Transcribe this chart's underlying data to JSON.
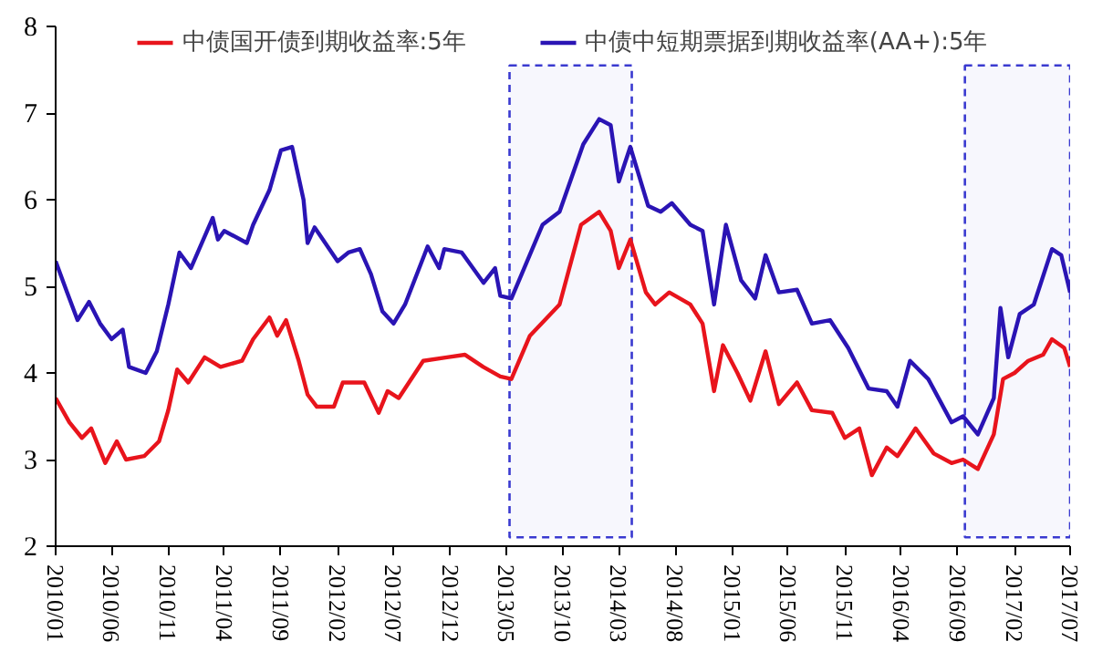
{
  "chart_data": {
    "type": "line",
    "legend": "top",
    "grid": false,
    "line_style": "solid",
    "marker": "none",
    "ylim": [
      2,
      8
    ],
    "yticks": [
      2,
      3,
      4,
      5,
      6,
      7,
      8
    ],
    "xlim": [
      "2010-01-01",
      "2017-07-01"
    ],
    "xticks": [
      {
        "value": "2010-01-01",
        "label": "2010/01"
      },
      {
        "value": "2010-06-01",
        "label": "2010/06"
      },
      {
        "value": "2010-11-01",
        "label": "2010/11"
      },
      {
        "value": "2011-04-01",
        "label": "2011/04"
      },
      {
        "value": "2011-09-01",
        "label": "2011/09"
      },
      {
        "value": "2012-02-01",
        "label": "2012/02"
      },
      {
        "value": "2012-07-01",
        "label": "2012/07"
      },
      {
        "value": "2012-12-01",
        "label": "2012/12"
      },
      {
        "value": "2013-05-01",
        "label": "2013/05"
      },
      {
        "value": "2013-10-01",
        "label": "2013/10"
      },
      {
        "value": "2014-03-01",
        "label": "2014/03"
      },
      {
        "value": "2014-08-01",
        "label": "2014/08"
      },
      {
        "value": "2015-01-01",
        "label": "2015/01"
      },
      {
        "value": "2015-06-01",
        "label": "2015/06"
      },
      {
        "value": "2015-11-01",
        "label": "2015/11"
      },
      {
        "value": "2016-04-01",
        "label": "2016/04"
      },
      {
        "value": "2016-09-01",
        "label": "2016/09"
      },
      {
        "value": "2017-02-01",
        "label": "2017/02"
      },
      {
        "value": "2017-07-01",
        "label": "2017/07"
      }
    ],
    "bands": [
      {
        "axis": "x",
        "from": "2013-05-10",
        "to": "2014-04-05",
        "color": "#3a3ad0"
      },
      {
        "axis": "x",
        "from": "2016-09-20",
        "to": "2017-07-01",
        "color": "#3a3ad0"
      }
    ],
    "series": [
      {
        "name": "中债国开债到期收益率:5年",
        "color": "#e8141c",
        "x": [
          "2010-01-01",
          "2010-02-07",
          "2010-03-13",
          "2010-04-07",
          "2010-05-15",
          "2010-06-15",
          "2010-07-10",
          "2010-08-28",
          "2010-10-07",
          "2010-11-01",
          "2010-11-25",
          "2010-12-25",
          "2011-02-07",
          "2011-03-22",
          "2011-05-19",
          "2011-06-18",
          "2011-08-01",
          "2011-08-22",
          "2011-09-15",
          "2011-10-19",
          "2011-11-12",
          "2011-12-07",
          "2012-01-22",
          "2012-02-15",
          "2012-04-13",
          "2012-05-22",
          "2012-06-15",
          "2012-07-15",
          "2012-09-19",
          "2012-11-22",
          "2013-01-10",
          "2013-02-28",
          "2013-04-15",
          "2013-05-15",
          "2013-07-04",
          "2013-09-22",
          "2013-11-19",
          "2014-01-07",
          "2014-02-07",
          "2014-03-01",
          "2014-04-01",
          "2014-05-13",
          "2014-06-07",
          "2014-07-15",
          "2014-09-10",
          "2014-10-13",
          "2014-11-13",
          "2014-12-07",
          "2015-01-15",
          "2015-02-19",
          "2015-04-01",
          "2015-05-07",
          "2015-06-25",
          "2015-08-04",
          "2015-09-28",
          "2015-11-01",
          "2015-12-10",
          "2016-01-13",
          "2016-02-22",
          "2016-03-22",
          "2016-05-10",
          "2016-06-28",
          "2016-08-15",
          "2016-09-15",
          "2016-10-25",
          "2016-12-07",
          "2017-01-01",
          "2017-02-01",
          "2017-03-10",
          "2017-04-19",
          "2017-05-13",
          "2017-06-15",
          "2017-07-01"
        ],
        "values": [
          3.71,
          3.43,
          3.25,
          3.36,
          2.96,
          3.21,
          3.0,
          3.04,
          3.21,
          3.57,
          4.04,
          3.89,
          4.18,
          4.07,
          4.14,
          4.39,
          4.64,
          4.43,
          4.61,
          4.14,
          3.75,
          3.61,
          3.61,
          3.89,
          3.89,
          3.54,
          3.79,
          3.71,
          4.14,
          4.18,
          4.21,
          4.07,
          3.96,
          3.93,
          4.43,
          4.79,
          5.71,
          5.86,
          5.64,
          5.21,
          5.54,
          4.93,
          4.79,
          4.93,
          4.79,
          4.57,
          3.79,
          4.32,
          4.0,
          3.68,
          4.25,
          3.64,
          3.89,
          3.57,
          3.54,
          3.25,
          3.36,
          2.82,
          3.14,
          3.04,
          3.36,
          3.07,
          2.96,
          3.0,
          2.89,
          3.29,
          3.93,
          4.0,
          4.14,
          4.21,
          4.39,
          4.29,
          4.07
        ]
      },
      {
        "name": "中债中短期票据到期收益率(AA+):5年",
        "color": "#2a14b4",
        "x": [
          "2010-01-01",
          "2010-02-01",
          "2010-03-01",
          "2010-04-01",
          "2010-05-01",
          "2010-06-01",
          "2010-07-01",
          "2010-07-18",
          "2010-09-01",
          "2010-10-01",
          "2010-11-01",
          "2010-12-01",
          "2011-01-01",
          "2011-03-01",
          "2011-03-15",
          "2011-04-01",
          "2011-06-01",
          "2011-06-18",
          "2011-08-01",
          "2011-09-01",
          "2011-10-01",
          "2011-11-01",
          "2011-11-12",
          "2011-12-01",
          "2012-02-01",
          "2012-03-01",
          "2012-04-01",
          "2012-05-01",
          "2012-06-01",
          "2012-07-01",
          "2012-08-01",
          "2012-10-01",
          "2012-11-01",
          "2012-11-15",
          "2013-01-01",
          "2013-03-01",
          "2013-04-01",
          "2013-04-15",
          "2013-05-15",
          "2013-08-07",
          "2013-09-22",
          "2013-11-25",
          "2014-01-07",
          "2014-02-07",
          "2014-03-01",
          "2014-04-01",
          "2014-05-19",
          "2014-06-22",
          "2014-07-22",
          "2014-09-10",
          "2014-10-13",
          "2014-11-13",
          "2014-12-15",
          "2015-01-25",
          "2015-03-04",
          "2015-04-01",
          "2015-05-07",
          "2015-06-25",
          "2015-08-04",
          "2015-09-22",
          "2015-11-10",
          "2016-01-04",
          "2016-02-22",
          "2016-03-22",
          "2016-04-25",
          "2016-06-13",
          "2016-08-15",
          "2016-09-15",
          "2016-10-25",
          "2016-12-07",
          "2016-12-25",
          "2017-01-15",
          "2017-02-15",
          "2017-03-25",
          "2017-05-13",
          "2017-06-07",
          "2017-07-01"
        ],
        "values": [
          5.29,
          4.93,
          4.61,
          4.82,
          4.57,
          4.39,
          4.5,
          4.07,
          4.0,
          4.25,
          4.79,
          5.39,
          5.21,
          5.79,
          5.54,
          5.64,
          5.5,
          5.71,
          6.11,
          6.57,
          6.61,
          6.0,
          5.5,
          5.68,
          5.29,
          5.39,
          5.43,
          5.14,
          4.71,
          4.57,
          4.79,
          5.46,
          5.21,
          5.43,
          5.39,
          5.04,
          5.21,
          4.89,
          4.86,
          5.71,
          5.86,
          6.64,
          6.93,
          6.86,
          6.21,
          6.61,
          5.93,
          5.86,
          5.96,
          5.71,
          5.64,
          4.79,
          5.71,
          5.07,
          4.86,
          5.36,
          4.93,
          4.96,
          4.57,
          4.61,
          4.29,
          3.82,
          3.79,
          3.61,
          4.14,
          3.93,
          3.43,
          3.5,
          3.29,
          3.71,
          4.75,
          4.18,
          4.68,
          4.79,
          5.43,
          5.36,
          4.93
        ]
      }
    ]
  }
}
